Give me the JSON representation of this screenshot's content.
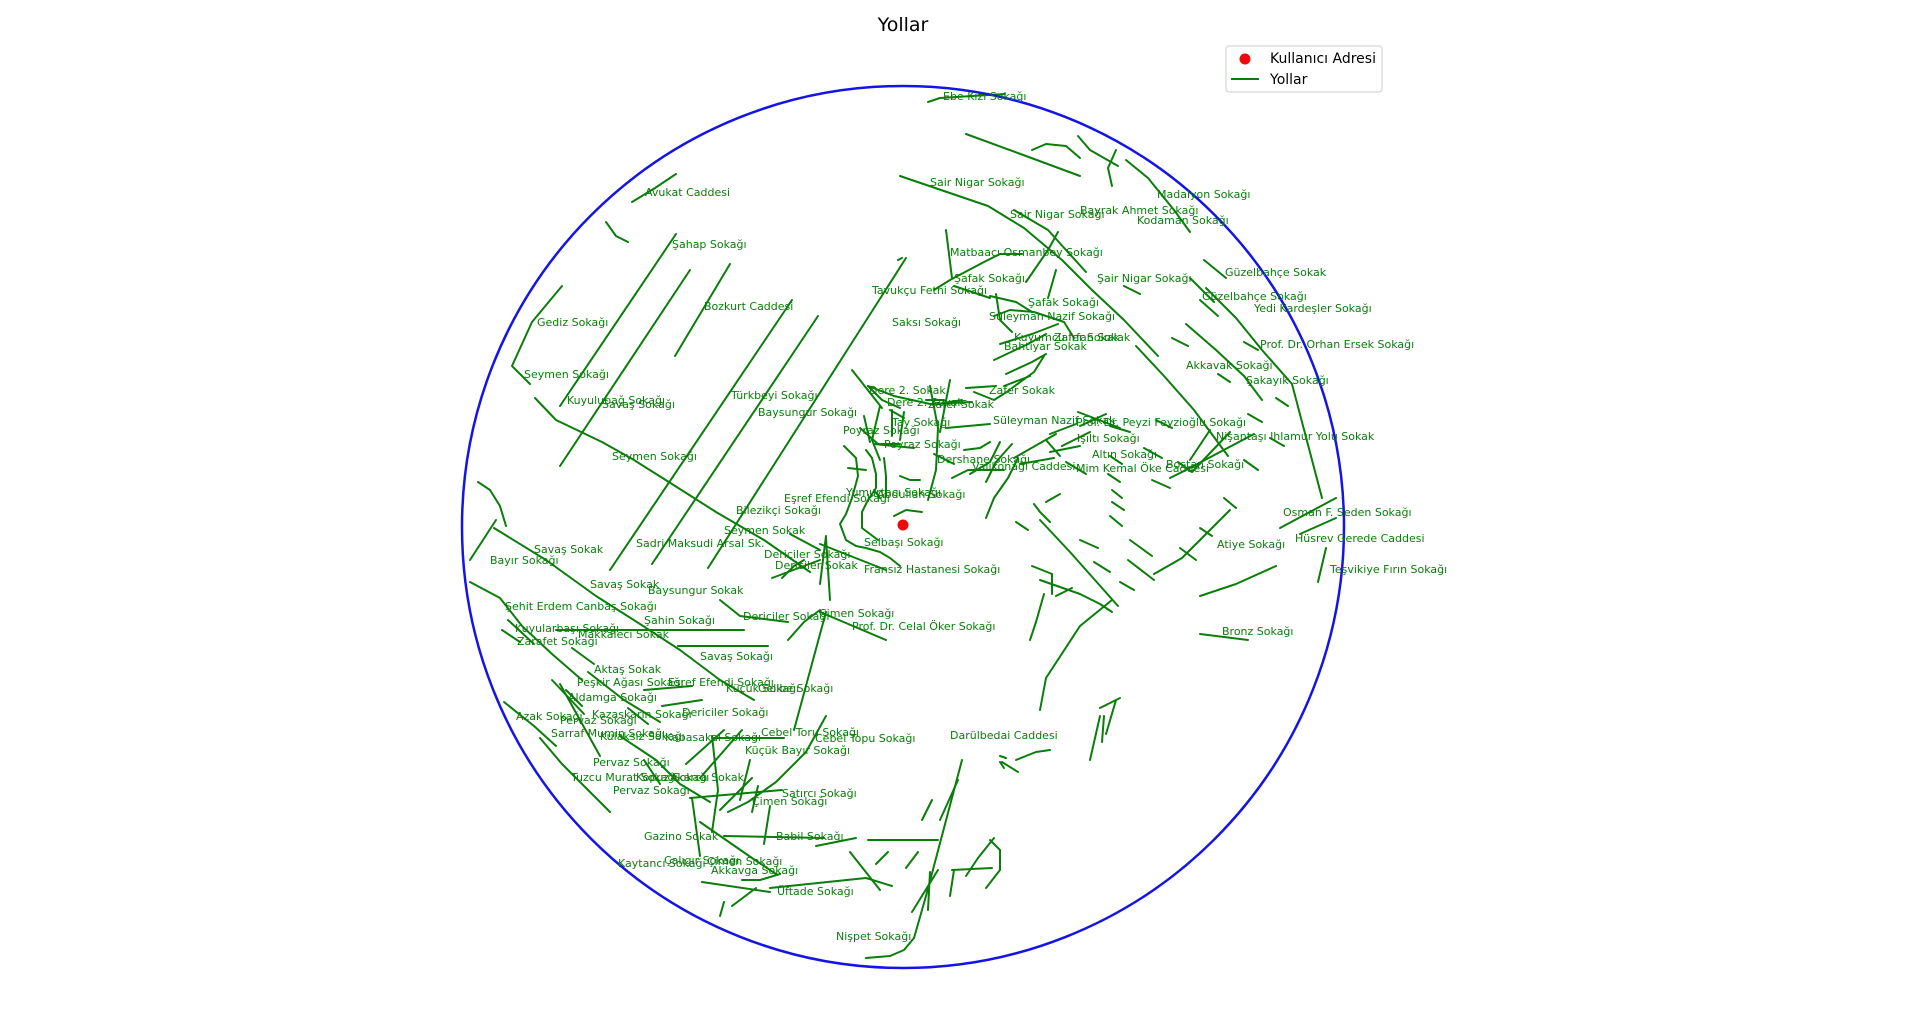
{
  "title": "Yollar",
  "colors": {
    "road": "#0a7d0a",
    "boundary": "#1414e6",
    "user": "#ee0a0a",
    "legend_border": "#cccccc"
  },
  "legend": {
    "user_label": "Kullanıcı Adresi",
    "road_label": "Yollar"
  },
  "street_labels": [
    "Ebe Kızı Sokağı",
    "Avukat Caddesi",
    "Sair Nigar Sokağı",
    "Sair Nigar Sokağı",
    "Madalyon Sokağı",
    "Bayrak Ahmet Sokağı",
    "Kodaman Sokağı",
    "Şahap Sokağı",
    "Matbaacı Osmanbey Sokağı",
    "Güzelbahçe Sokak",
    "Şafak Sokağı",
    "Şair Nigar Sokağı",
    "Tavukçu Fethi Sokağı",
    "Bozkurt Caddesi",
    "Güzelbahçe Sokağı",
    "Şafak Sokağı",
    "Yedi Kardeşler Sokağı",
    "Süleyman Nazif Sokağı",
    "Gediz Sokağı",
    "Saksı Sokağı",
    "Kuyumcu İrfan Sokak",
    "Zafer Sokak",
    "Bahtiyar Sokak",
    "Prof. Dr. Orhan Ersek Sokağı",
    "Akkavak Sokağı",
    "Seymen Sokağı",
    "Şakayık Sokağı",
    "Dere 2. Sokak",
    "Zafer Sokak",
    "Kuyulubağ Sokağı",
    "Savaş Sokağı",
    "Türkbeyi Sokağı",
    "Dere 2. Sokak",
    "Zafer Sokak",
    "Baysungur Sokağı",
    "Süleyman Nazif Sokak",
    "Prof. Dr. Peyzi Feyzioğlu Sokağı",
    "Tay Sokağı",
    "Poyraz Sokağı",
    "Işıltı Sokağı",
    "Nişantaşı Ihlamur Yolu Sokak",
    "Poyraz Sokağı",
    "Seymen Sokağı",
    "Altın Sokağı",
    "Dershane Sokağı",
    "Valikonağı Caddesi",
    "Mim Kemal Öke Caddesi",
    "Bostan Sokağı",
    "Yumurtacı Sokağı",
    "Abdullah Sokağı",
    "Eşref Efendi Sokağı",
    "Bilezikçi Sokağı",
    "Osman F. Seden Sokağı",
    "Seymen Sokak",
    "Selbaşı Sokağı",
    "Sadri Maksudi Arsal Sk.",
    "Hüsrev Gerede Caddesi",
    "Atiye Sokağı",
    "Savaş Sokak",
    "Dericiler Sokağı",
    "Bayır Sokağı",
    "Dericiler Sokak",
    "Fransız Hastanesi Sokağı",
    "Teşvikiye Fırın Sokağı",
    "Savaş Sokak",
    "Baysungur Sokak",
    "Şehit Erdem Canbaş Sokağı",
    "Dericiler Sokağı",
    "Çimen Sokağı",
    "Şahin Sokağı",
    "Prof. Dr. Celal Öker Sokağı",
    "Kuyularbaşı Sokağı",
    "Bronz Sokağı",
    "Makkaleci Sokak",
    "Zarafet Sokağı",
    "Savaş Sokağı",
    "Aktaş Sokak",
    "Peşkir Ağası Sokağı",
    "Eşref Efendi Sokağı",
    "Küçük Sokağı",
    "Gelibe Sokağı",
    "Aldamga Sokağı",
    "Dericiler Sokağı",
    "Azak Sokağı",
    "Kazaskarın Sokağı",
    "Pervaz Sokağı",
    "Sarraf Mumin Sokağı",
    "Kulaksız Sokağı",
    "Kabasakal Sokağı",
    "Cebel Toru Sokağı",
    "Darülbedai Caddesi",
    "Cebel Topu Sokağı",
    "Küçük Bayır Sokağı",
    "Pervaz Sokağı",
    "Tuzcu Murat Sokağı",
    "Kopuz Sokağı",
    "Akarca Sokak",
    "Pervaz Sokağı",
    "Satırcı Sokağı",
    "Çimen Sokağı",
    "Gazino Sokak",
    "Babil Sokağı",
    "Kaytancı Sokağı",
    "Çalıgır Sokağı",
    "Çimen Sokağı",
    "Akkavga Sokağı",
    "Üftade Sokağı",
    "Nişpet Sokağı"
  ]
}
